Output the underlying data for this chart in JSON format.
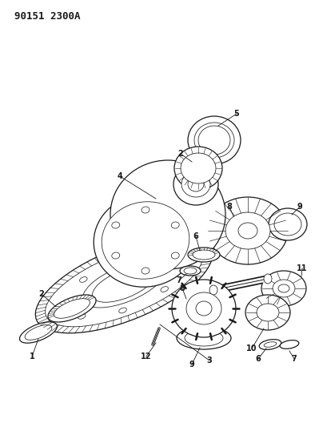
{
  "title": "90151 2300A",
  "bg_color": "#ffffff",
  "lc": "#1a1a1a",
  "fig_width": 3.94,
  "fig_height": 5.33,
  "dpi": 100,
  "label_fs": 7,
  "title_fs": 9
}
